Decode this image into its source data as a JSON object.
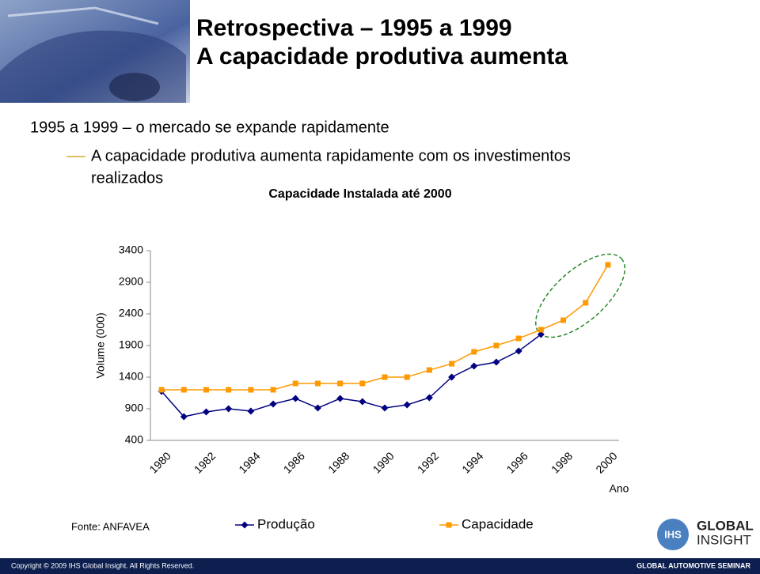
{
  "slide": {
    "title": [
      "Retrospectiva – 1995 a 1999",
      "A capacidade produtiva aumenta"
    ],
    "bullet": "1995 a 1999 – o mercado se expande rapidamente",
    "sub_bullet": [
      "A capacidade produtiva aumenta rapidamente com os investimentos",
      "realizados"
    ],
    "source": "Fonte: ANFAVEA",
    "logo": [
      "IHS",
      "GLOBAL",
      "INSIGHT"
    ],
    "footer_left": "Copyright © 2009 IHS Global Insight. All Rights Reserved.",
    "footer_right": "GLOBAL AUTOMOTIVE SEMINAR"
  },
  "chart_data": {
    "type": "line",
    "title": "Capacidade Instalada até 2000",
    "y_label": "Volume (000)",
    "x_label": "Ano",
    "categories": [
      "1980",
      null,
      "1982",
      null,
      "1984",
      null,
      "1986",
      null,
      "1988",
      null,
      "1990",
      null,
      "1992",
      null,
      "1994",
      null,
      "1996",
      null,
      "1998",
      null,
      "2000"
    ],
    "series": [
      {
        "name": "Produção",
        "color": "#000080",
        "marker": "diamond",
        "values": [
          1175,
          775,
          850,
          900,
          862,
          975,
          1062,
          912,
          1062,
          1012,
          912,
          962,
          1075,
          1400,
          1575,
          1637,
          1812,
          2075,
          null,
          null,
          null
        ]
      },
      {
        "name": "Capacidade",
        "color": "#ff9900",
        "marker": "square",
        "values": [
          1200,
          1200,
          1200,
          1200,
          1200,
          1200,
          1300,
          1300,
          1300,
          1300,
          1400,
          1400,
          1512,
          1612,
          1800,
          1900,
          2012,
          2150,
          2300,
          2575,
          3175
        ]
      }
    ],
    "ylim": [
      400,
      3400
    ],
    "yticks": [
      400,
      900,
      1400,
      1900,
      2400,
      2900,
      3400
    ],
    "grid": false
  }
}
